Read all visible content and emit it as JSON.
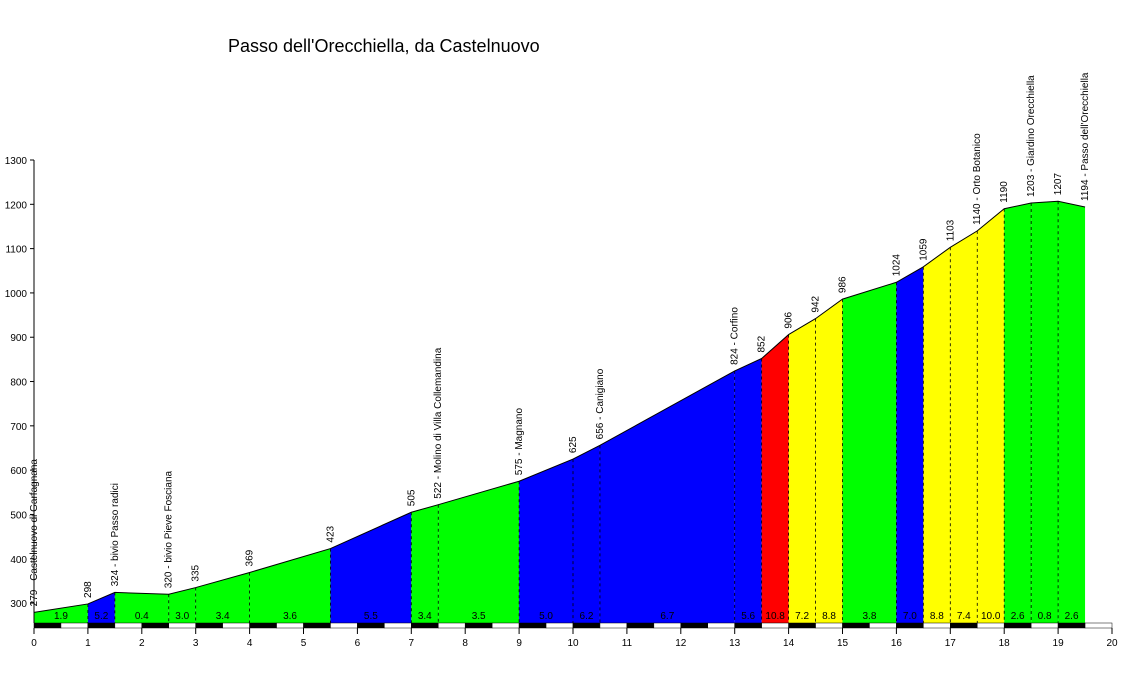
{
  "chart_data": {
    "type": "area",
    "title": "Passo dell'Orecchiella, da Castelnuovo",
    "xlim": [
      0,
      20
    ],
    "ylim": [
      255,
      1300
    ],
    "x_ticks": [
      0,
      1,
      2,
      3,
      4,
      5,
      6,
      7,
      8,
      9,
      10,
      11,
      12,
      13,
      14,
      15,
      16,
      17,
      18,
      19,
      20
    ],
    "y_ticks": [
      300,
      400,
      500,
      600,
      700,
      800,
      900,
      1000,
      1100,
      1200,
      1300
    ],
    "colors": {
      "green": "#00ff00",
      "blue": "#0000ff",
      "red": "#ff0000",
      "yellow": "#ffff00",
      "line": "#000000"
    },
    "profile": [
      {
        "x": 0.0,
        "y": 279,
        "label": "279 - Castelnuovo di Garfagnana"
      },
      {
        "x": 1.0,
        "y": 298,
        "label": "298"
      },
      {
        "x": 1.5,
        "y": 324,
        "label": "324 - bivio Passo radici"
      },
      {
        "x": 2.5,
        "y": 320,
        "label": "320 - bivio Pieve Fosciana"
      },
      {
        "x": 3.0,
        "y": 335,
        "label": "335"
      },
      {
        "x": 4.0,
        "y": 369,
        "label": "369"
      },
      {
        "x": 5.5,
        "y": 423,
        "label": "423"
      },
      {
        "x": 7.0,
        "y": 505,
        "label": "505"
      },
      {
        "x": 7.5,
        "y": 522,
        "label": "522 - Molino di Villa Collemandina"
      },
      {
        "x": 9.0,
        "y": 575,
        "label": "575 - Magnano"
      },
      {
        "x": 10.0,
        "y": 625,
        "label": "625"
      },
      {
        "x": 10.5,
        "y": 656,
        "label": "656 - Canigiano"
      },
      {
        "x": 13.0,
        "y": 824,
        "label": "824 - Corfino"
      },
      {
        "x": 13.5,
        "y": 852,
        "label": "852"
      },
      {
        "x": 14.0,
        "y": 906,
        "label": "906"
      },
      {
        "x": 14.5,
        "y": 942,
        "label": "942"
      },
      {
        "x": 15.0,
        "y": 986,
        "label": "986"
      },
      {
        "x": 16.0,
        "y": 1024,
        "label": "1024"
      },
      {
        "x": 16.5,
        "y": 1059,
        "label": "1059"
      },
      {
        "x": 17.0,
        "y": 1103,
        "label": "1103"
      },
      {
        "x": 17.5,
        "y": 1140,
        "label": "1140 - Orto Botanico"
      },
      {
        "x": 18.0,
        "y": 1190,
        "label": "1190"
      },
      {
        "x": 18.5,
        "y": 1203,
        "label": "1203 - Giardino Orecchiella"
      },
      {
        "x": 19.0,
        "y": 1207,
        "label": "1207"
      },
      {
        "x": 19.5,
        "y": 1194,
        "label": "1194 - Passo dell'Orecchiella"
      }
    ],
    "segments": [
      {
        "x0": 0.0,
        "x1": 1.0,
        "gradient": "1.9",
        "color": "green"
      },
      {
        "x0": 1.0,
        "x1": 1.5,
        "gradient": "5.2",
        "color": "blue"
      },
      {
        "x0": 1.5,
        "x1": 2.5,
        "gradient": "0.4",
        "color": "green"
      },
      {
        "x0": 2.5,
        "x1": 3.0,
        "gradient": "3.0",
        "color": "green"
      },
      {
        "x0": 3.0,
        "x1": 4.0,
        "gradient": "3.4",
        "color": "green"
      },
      {
        "x0": 4.0,
        "x1": 5.5,
        "gradient": "3.6",
        "color": "green"
      },
      {
        "x0": 5.5,
        "x1": 7.0,
        "gradient": "5.5",
        "color": "blue"
      },
      {
        "x0": 7.0,
        "x1": 7.5,
        "gradient": "3.4",
        "color": "green"
      },
      {
        "x0": 7.5,
        "x1": 9.0,
        "gradient": "3.5",
        "color": "green"
      },
      {
        "x0": 9.0,
        "x1": 10.0,
        "gradient": "5.0",
        "color": "blue"
      },
      {
        "x0": 10.0,
        "x1": 10.5,
        "gradient": "6.2",
        "color": "blue"
      },
      {
        "x0": 10.5,
        "x1": 13.0,
        "gradient": "6.7",
        "color": "blue"
      },
      {
        "x0": 13.0,
        "x1": 13.5,
        "gradient": "5.6",
        "color": "blue"
      },
      {
        "x0": 13.5,
        "x1": 14.0,
        "gradient": "10.8",
        "color": "red"
      },
      {
        "x0": 14.0,
        "x1": 14.5,
        "gradient": "7.2",
        "color": "yellow"
      },
      {
        "x0": 14.5,
        "x1": 15.0,
        "gradient": "8.8",
        "color": "yellow"
      },
      {
        "x0": 15.0,
        "x1": 16.0,
        "gradient": "3.8",
        "color": "green"
      },
      {
        "x0": 16.0,
        "x1": 16.5,
        "gradient": "7.0",
        "color": "blue"
      },
      {
        "x0": 16.5,
        "x1": 17.0,
        "gradient": "8.8",
        "color": "yellow"
      },
      {
        "x0": 17.0,
        "x1": 17.5,
        "gradient": "7.4",
        "color": "yellow"
      },
      {
        "x0": 17.5,
        "x1": 18.0,
        "gradient": "10.0",
        "color": "yellow"
      },
      {
        "x0": 18.0,
        "x1": 18.5,
        "gradient": "2.6",
        "color": "green"
      },
      {
        "x0": 18.5,
        "x1": 19.0,
        "gradient": "0.8",
        "color": "green"
      },
      {
        "x0": 19.0,
        "x1": 19.5,
        "gradient": "2.6",
        "color": "green"
      }
    ]
  }
}
